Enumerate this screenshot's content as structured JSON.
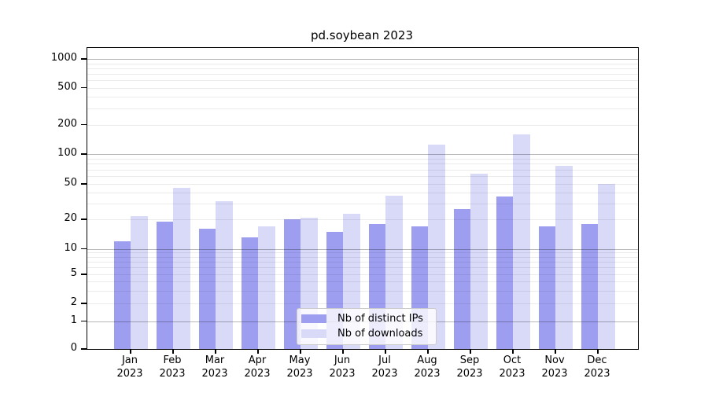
{
  "figure": {
    "title": "pd.soybean 2023"
  },
  "legend": {
    "items": [
      {
        "label": "Nb of distinct IPs",
        "color": "#9e9ef0"
      },
      {
        "label": "Nb of downloads",
        "color": "#d9d9f8"
      }
    ]
  },
  "chart_data": {
    "type": "bar",
    "title": "pd.soybean 2023",
    "categories": [
      "Jan 2023",
      "Feb 2023",
      "Mar 2023",
      "Apr 2023",
      "May 2023",
      "Jun 2023",
      "Jul 2023",
      "Aug 2023",
      "Sep 2023",
      "Oct 2023",
      "Nov 2023",
      "Dec 2023"
    ],
    "x_tick_months": [
      "Jan",
      "Feb",
      "Mar",
      "Apr",
      "May",
      "Jun",
      "Jul",
      "Aug",
      "Sep",
      "Oct",
      "Nov",
      "Dec"
    ],
    "x_tick_year": "2023",
    "series": [
      {
        "name": "Nb of distinct IPs",
        "color": "#9e9ef0",
        "values": [
          12,
          19,
          16,
          13,
          20,
          15,
          18,
          17,
          26,
          36,
          17,
          18
        ]
      },
      {
        "name": "Nb of downloads",
        "color": "#d9d9f8",
        "values": [
          22,
          45,
          32,
          17,
          21,
          23,
          37,
          125,
          63,
          160,
          77,
          50
        ]
      }
    ],
    "y_axis": {
      "scale": "symlog",
      "ticks": [
        0,
        1,
        2,
        5,
        10,
        20,
        50,
        100,
        200,
        500,
        1000
      ],
      "tick_labels": [
        "0",
        "1",
        "2",
        "5",
        "10",
        "20",
        "50",
        "100",
        "200",
        "500",
        "1000"
      ],
      "ylim": [
        0,
        1300
      ],
      "major_grid_values": [
        1,
        10,
        100,
        1000
      ],
      "minor_grid_values": [
        2,
        3,
        4,
        5,
        6,
        7,
        8,
        9,
        20,
        30,
        40,
        50,
        60,
        70,
        80,
        90,
        200,
        300,
        400,
        500,
        600,
        700,
        800,
        900
      ]
    },
    "grid": true,
    "legend_position": "lower center"
  }
}
